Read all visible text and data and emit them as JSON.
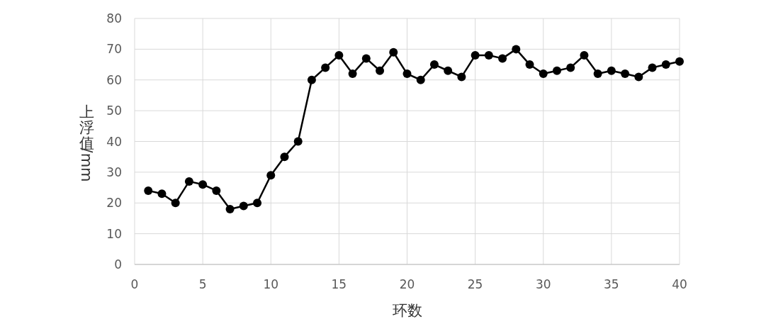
{
  "chart_data": {
    "type": "line",
    "xlabel": "环数",
    "ylabel": "上浮值/mm",
    "x": [
      1,
      2,
      3,
      4,
      5,
      6,
      7,
      8,
      9,
      10,
      11,
      12,
      13,
      14,
      15,
      16,
      17,
      18,
      19,
      20,
      21,
      22,
      23,
      24,
      25,
      26,
      27,
      28,
      29,
      30,
      31,
      32,
      33,
      34,
      35,
      36,
      37,
      38,
      39,
      40
    ],
    "series": [
      {
        "color": "#000000",
        "values": [
          24,
          23,
          20,
          27,
          26,
          24,
          18,
          19,
          20,
          29,
          35,
          40,
          60,
          64,
          68,
          62,
          67,
          63,
          69,
          62,
          60,
          65,
          63,
          61,
          68,
          68,
          67,
          70,
          65,
          62,
          63,
          64,
          68,
          62,
          63,
          62,
          61,
          64,
          65,
          66
        ]
      }
    ],
    "xlim": [
      0,
      40
    ],
    "xticks": [
      0,
      5,
      10,
      15,
      20,
      25,
      30,
      35,
      40
    ],
    "ylim": [
      0,
      80
    ],
    "yticks": [
      0,
      10,
      20,
      30,
      40,
      50,
      60,
      70,
      80
    ],
    "grid": true,
    "marker": "circle",
    "line_style": "solid"
  }
}
